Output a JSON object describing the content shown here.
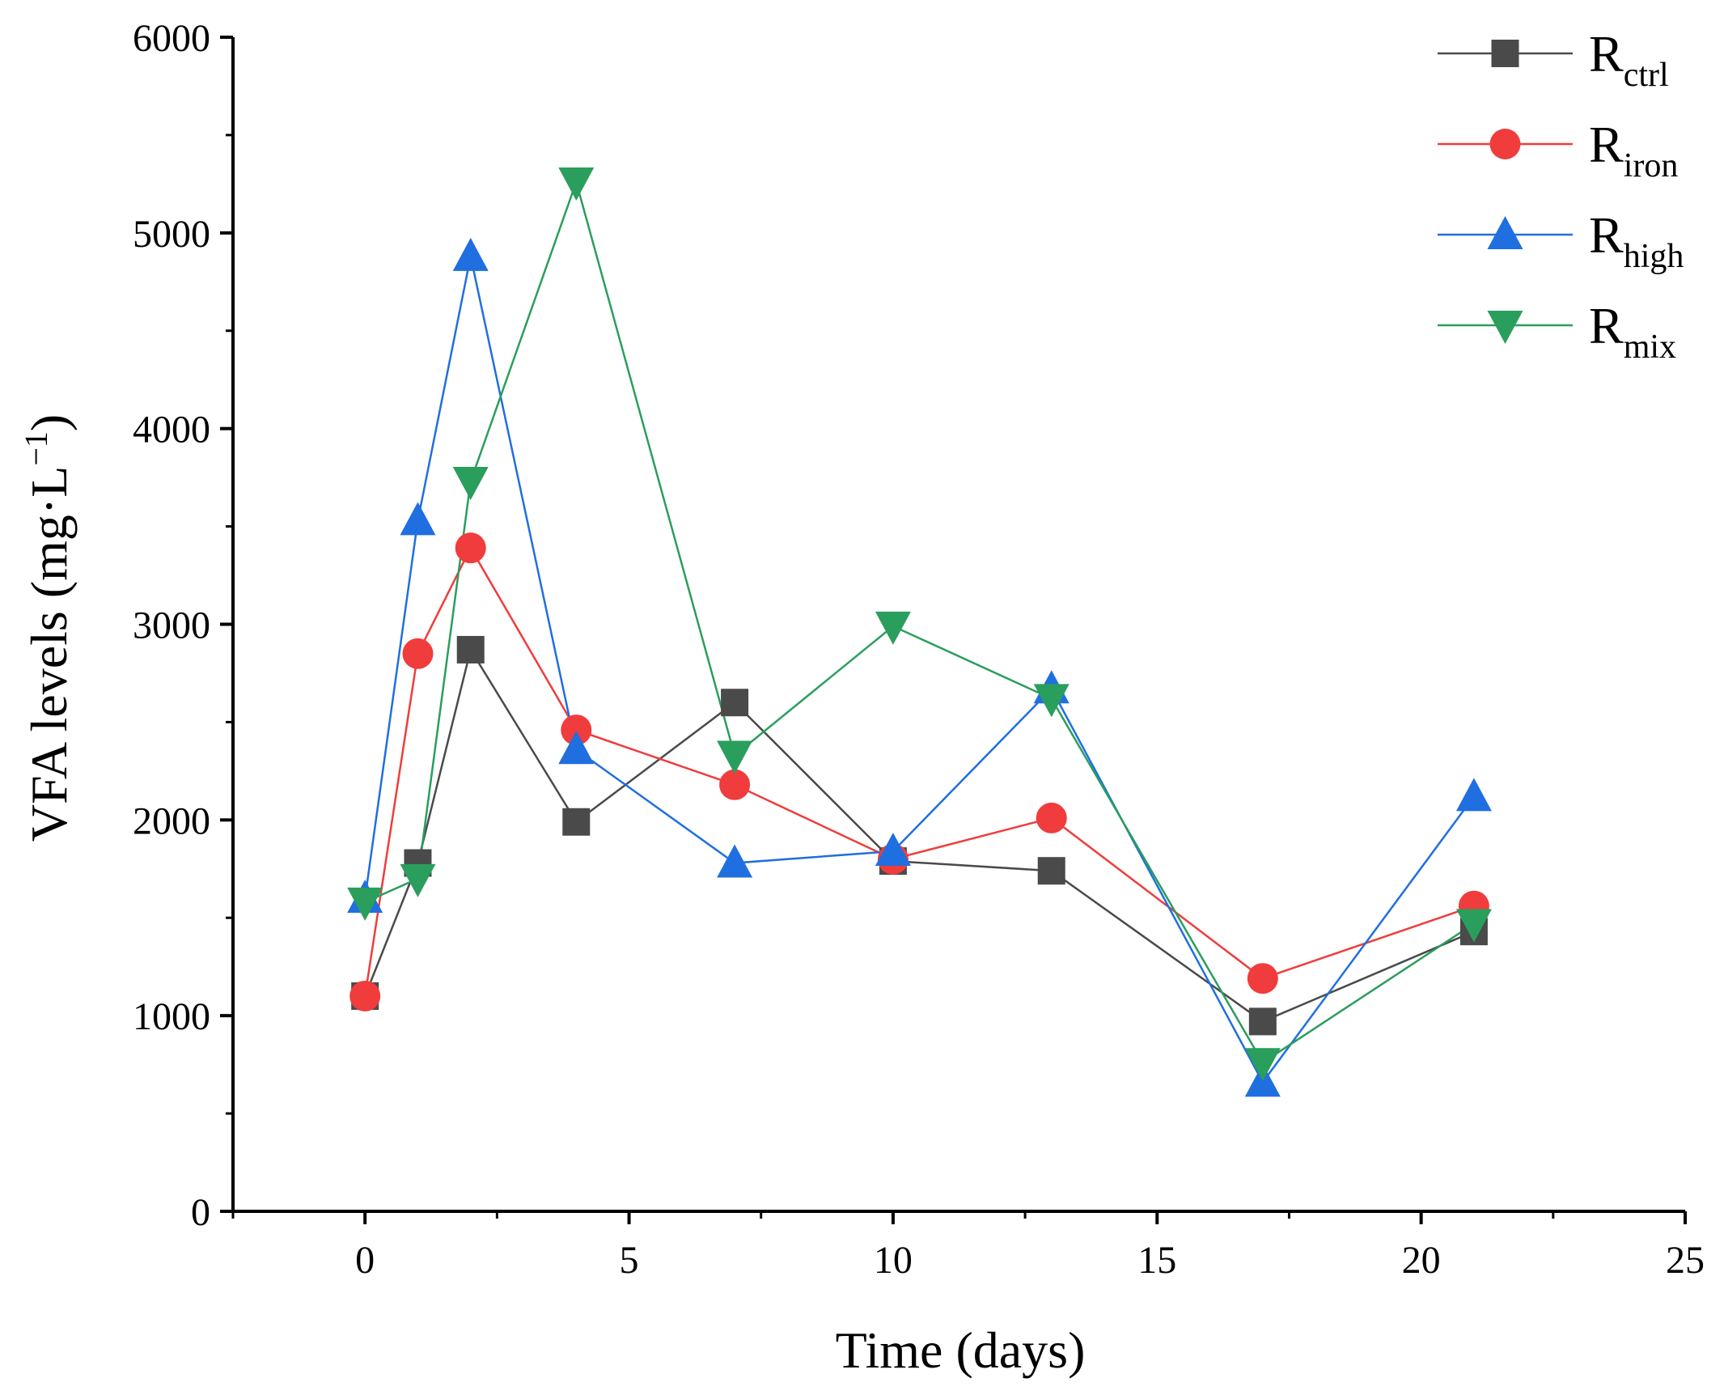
{
  "chart_data": {
    "type": "line",
    "xlabel": "Time (days)",
    "ylabel": "VFA levels (mg·L",
    "ylabel_unit_power": "−1",
    "ylabel_close": ")",
    "xlim": [
      -2.5,
      25
    ],
    "ylim": [
      0,
      6000
    ],
    "x_ticks": [
      0,
      5,
      10,
      15,
      20,
      25
    ],
    "x_tick_labels": [
      "0",
      "5",
      "10",
      "15",
      "20",
      "25"
    ],
    "y_ticks": [
      0,
      1000,
      2000,
      3000,
      4000,
      5000,
      6000
    ],
    "y_tick_labels": [
      "0",
      "1000",
      "2000",
      "3000",
      "4000",
      "5000",
      "6000"
    ],
    "grid": false,
    "legend_position": "top-right",
    "x": [
      0,
      1,
      2,
      4,
      7,
      10,
      13,
      17,
      21
    ],
    "series": [
      {
        "name": "R",
        "subscript": "ctrl",
        "color": "#4a4a4a",
        "marker": "square",
        "values": [
          1100,
          1780,
          2870,
          1990,
          2600,
          1790,
          1740,
          970,
          1430
        ]
      },
      {
        "name": "R",
        "subscript": "iron",
        "color": "#f03c3c",
        "marker": "circle",
        "values": [
          1100,
          2850,
          3390,
          2460,
          2180,
          1800,
          2010,
          1190,
          1560
        ]
      },
      {
        "name": "R",
        "subscript": "high",
        "color": "#1f6fe0",
        "marker": "triangle-up",
        "values": [
          1600,
          3530,
          4880,
          2360,
          1780,
          1840,
          2670,
          660,
          2120
        ]
      },
      {
        "name": "R",
        "subscript": "mix",
        "color": "#2a9e5c",
        "marker": "triangle-down",
        "values": [
          1580,
          1700,
          3730,
          5260,
          2330,
          2990,
          2620,
          760,
          1470
        ]
      }
    ]
  }
}
